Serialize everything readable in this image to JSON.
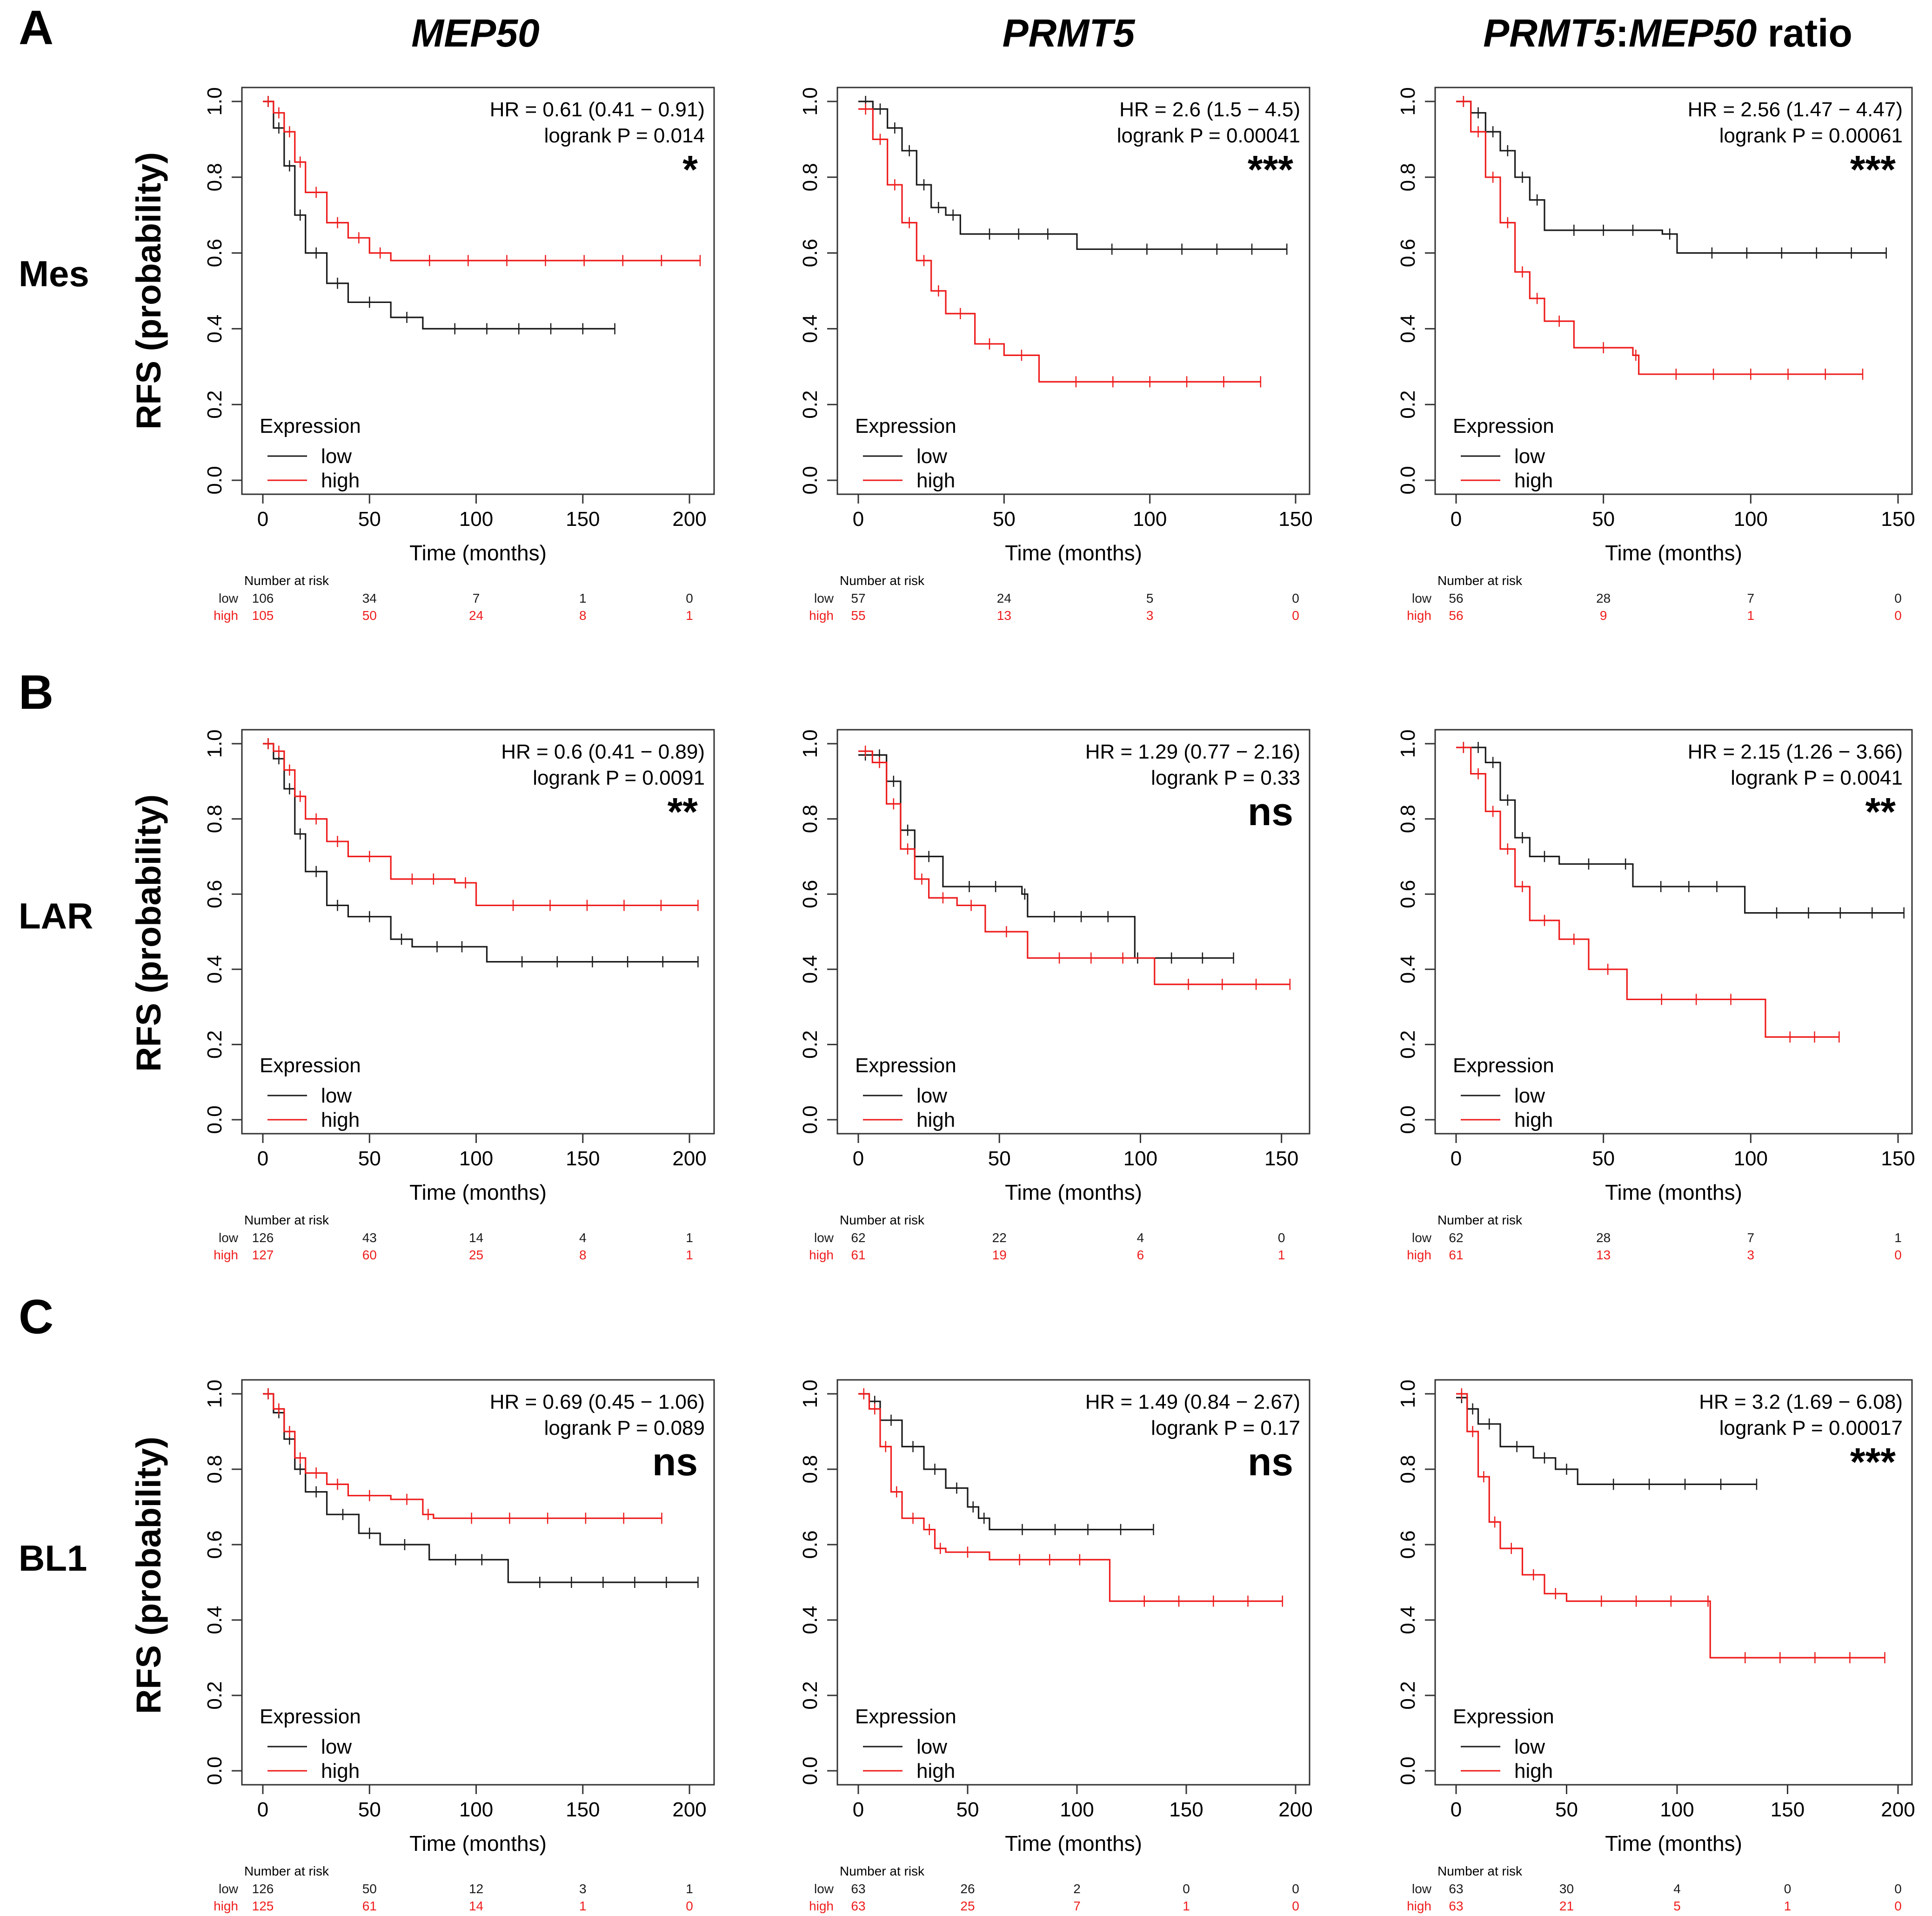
{
  "figure": {
    "col_titles": [
      {
        "name": "col-title-mep50",
        "parts": [
          {
            "t": "MEP50",
            "i": true
          }
        ]
      },
      {
        "name": "col-title-prmt5",
        "parts": [
          {
            "t": "PRMT5",
            "i": true
          }
        ]
      },
      {
        "name": "col-title-ratio",
        "parts": [
          {
            "t": "PRMT5",
            "i": true
          },
          {
            "t": ":",
            "i": false
          },
          {
            "t": "MEP50",
            "i": true
          },
          {
            "t": " ratio",
            "i": false
          }
        ]
      }
    ],
    "rows": [
      {
        "letter": "A",
        "subtype": "Mes"
      },
      {
        "letter": "B",
        "subtype": "LAR"
      },
      {
        "letter": "C",
        "subtype": "BL1"
      }
    ],
    "ylabel": "RFS  (probability)",
    "xlabel": "Time (months)",
    "y_ticks": [
      "0.0",
      "0.2",
      "0.4",
      "0.6",
      "0.8",
      "1.0"
    ],
    "legend_title": "Expression",
    "legend_low": "low",
    "legend_high": "high",
    "risk_title": "Number at risk",
    "colors": {
      "low": "#1a1a1a",
      "high": "#ee1c1c",
      "text": "#000000"
    }
  },
  "chart_data": [
    {
      "type": "line",
      "panel": "A-MEP50",
      "xlim": [
        0,
        205
      ],
      "x_ticks": [
        0,
        50,
        100,
        150,
        200
      ],
      "ylim": [
        0,
        1
      ],
      "hr": "HR = 0.61 (0.41 − 0.91)",
      "p": "logrank P = 0.014",
      "sig": "*",
      "series": [
        {
          "name": "low",
          "x": [
            0,
            5,
            10,
            15,
            20,
            30,
            40,
            60,
            75,
            165
          ],
          "y": [
            1.0,
            0.93,
            0.83,
            0.7,
            0.6,
            0.52,
            0.47,
            0.43,
            0.4,
            0.4
          ]
        },
        {
          "name": "high",
          "x": [
            0,
            5,
            10,
            15,
            20,
            30,
            40,
            50,
            60,
            205
          ],
          "y": [
            1.0,
            0.97,
            0.92,
            0.84,
            0.76,
            0.68,
            0.64,
            0.6,
            0.58,
            0.58
          ]
        }
      ],
      "risk_x": [
        0,
        50,
        100,
        150,
        200
      ],
      "risk_low": [
        "106",
        "34",
        "7",
        "1",
        "0"
      ],
      "risk_high": [
        "105",
        "50",
        "24",
        "8",
        "1"
      ]
    },
    {
      "type": "line",
      "panel": "A-PRMT5",
      "xlim": [
        0,
        150
      ],
      "x_ticks": [
        0,
        50,
        100,
        150
      ],
      "ylim": [
        0,
        1
      ],
      "hr": "HR = 2.6 (1.5 − 4.5)",
      "p": "logrank P = 0.00041",
      "sig": "***",
      "series": [
        {
          "name": "low",
          "x": [
            0,
            5,
            10,
            15,
            20,
            25,
            30,
            35,
            75,
            147
          ],
          "y": [
            1.0,
            0.98,
            0.93,
            0.87,
            0.78,
            0.72,
            0.7,
            0.65,
            0.61,
            0.61
          ]
        },
        {
          "name": "high",
          "x": [
            0,
            5,
            10,
            15,
            20,
            25,
            30,
            40,
            50,
            62,
            138
          ],
          "y": [
            0.98,
            0.9,
            0.78,
            0.68,
            0.58,
            0.5,
            0.44,
            0.36,
            0.33,
            0.26,
            0.26
          ]
        }
      ],
      "risk_x": [
        0,
        50,
        100,
        150
      ],
      "risk_low": [
        "57",
        "24",
        "5",
        "0"
      ],
      "risk_high": [
        "55",
        "13",
        "3",
        "0"
      ]
    },
    {
      "type": "line",
      "panel": "A-RATIO",
      "xlim": [
        0,
        150
      ],
      "x_ticks": [
        0,
        50,
        100,
        150
      ],
      "ylim": [
        0,
        1
      ],
      "hr": "HR = 2.56 (1.47 − 4.47)",
      "p": "logrank P = 0.00061",
      "sig": "***",
      "series": [
        {
          "name": "low",
          "x": [
            0,
            5,
            10,
            15,
            20,
            25,
            30,
            70,
            75,
            146
          ],
          "y": [
            1.0,
            0.97,
            0.92,
            0.87,
            0.8,
            0.74,
            0.66,
            0.65,
            0.6,
            0.6
          ]
        },
        {
          "name": "high",
          "x": [
            0,
            5,
            10,
            15,
            20,
            25,
            30,
            40,
            60,
            62,
            138
          ],
          "y": [
            1.0,
            0.92,
            0.8,
            0.68,
            0.55,
            0.48,
            0.42,
            0.35,
            0.33,
            0.28,
            0.28
          ]
        }
      ],
      "risk_x": [
        0,
        50,
        100,
        150
      ],
      "risk_low": [
        "56",
        "28",
        "7",
        "0"
      ],
      "risk_high": [
        "56",
        "9",
        "1",
        "0"
      ]
    },
    {
      "type": "line",
      "panel": "B-MEP50",
      "xlim": [
        0,
        205
      ],
      "x_ticks": [
        0,
        50,
        100,
        150,
        200
      ],
      "ylim": [
        0,
        1
      ],
      "hr": "HR = 0.6 (0.41 − 0.89)",
      "p": "logrank P = 0.0091",
      "sig": "**",
      "series": [
        {
          "name": "low",
          "x": [
            0,
            5,
            10,
            15,
            20,
            30,
            40,
            60,
            70,
            105,
            204
          ],
          "y": [
            1.0,
            0.96,
            0.88,
            0.76,
            0.66,
            0.57,
            0.54,
            0.48,
            0.46,
            0.42,
            0.42
          ]
        },
        {
          "name": "high",
          "x": [
            0,
            5,
            10,
            15,
            20,
            30,
            40,
            60,
            90,
            100,
            204
          ],
          "y": [
            1.0,
            0.98,
            0.93,
            0.86,
            0.8,
            0.74,
            0.7,
            0.64,
            0.63,
            0.57,
            0.57
          ]
        }
      ],
      "risk_x": [
        0,
        50,
        100,
        150,
        200
      ],
      "risk_low": [
        "126",
        "43",
        "14",
        "4",
        "1"
      ],
      "risk_high": [
        "127",
        "60",
        "25",
        "8",
        "1"
      ]
    },
    {
      "type": "line",
      "panel": "B-PRMT5",
      "xlim": [
        0,
        155
      ],
      "x_ticks": [
        0,
        50,
        100,
        150
      ],
      "ylim": [
        0,
        1
      ],
      "hr": "HR = 1.29 (0.77 − 2.16)",
      "p": "logrank P = 0.33",
      "sig": "ns",
      "series": [
        {
          "name": "low",
          "x": [
            0,
            5,
            10,
            15,
            20,
            30,
            58,
            60,
            98,
            100,
            133
          ],
          "y": [
            0.97,
            0.97,
            0.9,
            0.77,
            0.7,
            0.62,
            0.6,
            0.54,
            0.43,
            0.43,
            0.43
          ]
        },
        {
          "name": "high",
          "x": [
            0,
            5,
            10,
            15,
            20,
            25,
            35,
            45,
            60,
            105,
            153
          ],
          "y": [
            0.98,
            0.95,
            0.84,
            0.72,
            0.64,
            0.59,
            0.57,
            0.5,
            0.43,
            0.36,
            0.36
          ]
        }
      ],
      "risk_x": [
        0,
        50,
        100,
        150
      ],
      "risk_low": [
        "62",
        "22",
        "4",
        "0"
      ],
      "risk_high": [
        "61",
        "19",
        "6",
        "1"
      ]
    },
    {
      "type": "line",
      "panel": "B-RATIO",
      "xlim": [
        0,
        150
      ],
      "x_ticks": [
        0,
        50,
        100,
        150
      ],
      "ylim": [
        0,
        1
      ],
      "hr": "HR = 2.15 (1.26 − 3.66)",
      "p": "logrank P = 0.0041",
      "sig": "**",
      "series": [
        {
          "name": "low",
          "x": [
            0,
            5,
            10,
            15,
            20,
            25,
            35,
            55,
            60,
            98,
            152
          ],
          "y": [
            0.99,
            0.99,
            0.95,
            0.85,
            0.75,
            0.7,
            0.68,
            0.68,
            0.62,
            0.55,
            0.55
          ]
        },
        {
          "name": "high",
          "x": [
            0,
            5,
            10,
            15,
            20,
            25,
            35,
            45,
            58,
            105,
            130
          ],
          "y": [
            0.99,
            0.92,
            0.82,
            0.72,
            0.62,
            0.53,
            0.48,
            0.4,
            0.32,
            0.22,
            0.22
          ]
        }
      ],
      "risk_x": [
        0,
        50,
        100,
        150
      ],
      "risk_low": [
        "62",
        "28",
        "7",
        "1"
      ],
      "risk_high": [
        "61",
        "13",
        "3",
        "0"
      ]
    },
    {
      "type": "line",
      "panel": "C-MEP50",
      "xlim": [
        0,
        205
      ],
      "x_ticks": [
        0,
        50,
        100,
        150,
        200
      ],
      "ylim": [
        0,
        1
      ],
      "hr": "HR = 0.69 (0.45 − 1.06)",
      "p": "logrank P = 0.089",
      "sig": "ns",
      "series": [
        {
          "name": "low",
          "x": [
            0,
            5,
            10,
            15,
            20,
            30,
            45,
            55,
            78,
            115,
            204
          ],
          "y": [
            1.0,
            0.95,
            0.88,
            0.8,
            0.74,
            0.68,
            0.63,
            0.6,
            0.56,
            0.5,
            0.5
          ]
        },
        {
          "name": "high",
          "x": [
            0,
            5,
            10,
            15,
            20,
            30,
            40,
            60,
            75,
            80,
            187
          ],
          "y": [
            1.0,
            0.96,
            0.9,
            0.83,
            0.79,
            0.76,
            0.73,
            0.72,
            0.68,
            0.67,
            0.67
          ]
        }
      ],
      "risk_x": [
        0,
        50,
        100,
        150,
        200
      ],
      "risk_low": [
        "126",
        "50",
        "12",
        "3",
        "1"
      ],
      "risk_high": [
        "125",
        "61",
        "14",
        "1",
        "0"
      ]
    },
    {
      "type": "line",
      "panel": "C-PRMT5",
      "xlim": [
        0,
        200
      ],
      "x_ticks": [
        0,
        50,
        100,
        150,
        200
      ],
      "ylim": [
        0,
        1
      ],
      "hr": "HR = 1.49 (0.84 − 2.67)",
      "p": "logrank P = 0.17",
      "sig": "ns",
      "series": [
        {
          "name": "low",
          "x": [
            0,
            5,
            10,
            20,
            30,
            40,
            50,
            55,
            60,
            135
          ],
          "y": [
            1.0,
            0.98,
            0.93,
            0.86,
            0.8,
            0.75,
            0.7,
            0.67,
            0.64,
            0.64
          ]
        },
        {
          "name": "high",
          "x": [
            0,
            5,
            10,
            15,
            20,
            30,
            35,
            40,
            60,
            115,
            194
          ],
          "y": [
            1.0,
            0.96,
            0.86,
            0.74,
            0.67,
            0.64,
            0.59,
            0.58,
            0.56,
            0.45,
            0.45
          ]
        }
      ],
      "risk_x": [
        0,
        50,
        100,
        150,
        200
      ],
      "risk_low": [
        "63",
        "26",
        "2",
        "0",
        "0"
      ],
      "risk_high": [
        "63",
        "25",
        "7",
        "1",
        "0"
      ]
    },
    {
      "type": "line",
      "panel": "C-RATIO",
      "xlim": [
        0,
        200
      ],
      "x_ticks": [
        0,
        50,
        100,
        150,
        200
      ],
      "ylim": [
        0,
        1
      ],
      "hr": "HR = 3.2 (1.69 − 6.08)",
      "p": "logrank P = 0.00017",
      "sig": "***",
      "series": [
        {
          "name": "low",
          "x": [
            0,
            5,
            10,
            20,
            35,
            45,
            55,
            136
          ],
          "y": [
            0.99,
            0.96,
            0.92,
            0.86,
            0.83,
            0.8,
            0.76,
            0.76
          ]
        },
        {
          "name": "high",
          "x": [
            0,
            5,
            10,
            15,
            20,
            30,
            40,
            50,
            113,
            115,
            194
          ],
          "y": [
            1.0,
            0.9,
            0.78,
            0.66,
            0.59,
            0.52,
            0.47,
            0.45,
            0.45,
            0.3,
            0.3
          ]
        }
      ],
      "risk_x": [
        0,
        50,
        100,
        150,
        200
      ],
      "risk_low": [
        "63",
        "30",
        "4",
        "0",
        "0"
      ],
      "risk_high": [
        "63",
        "21",
        "5",
        "1",
        "0"
      ]
    }
  ]
}
